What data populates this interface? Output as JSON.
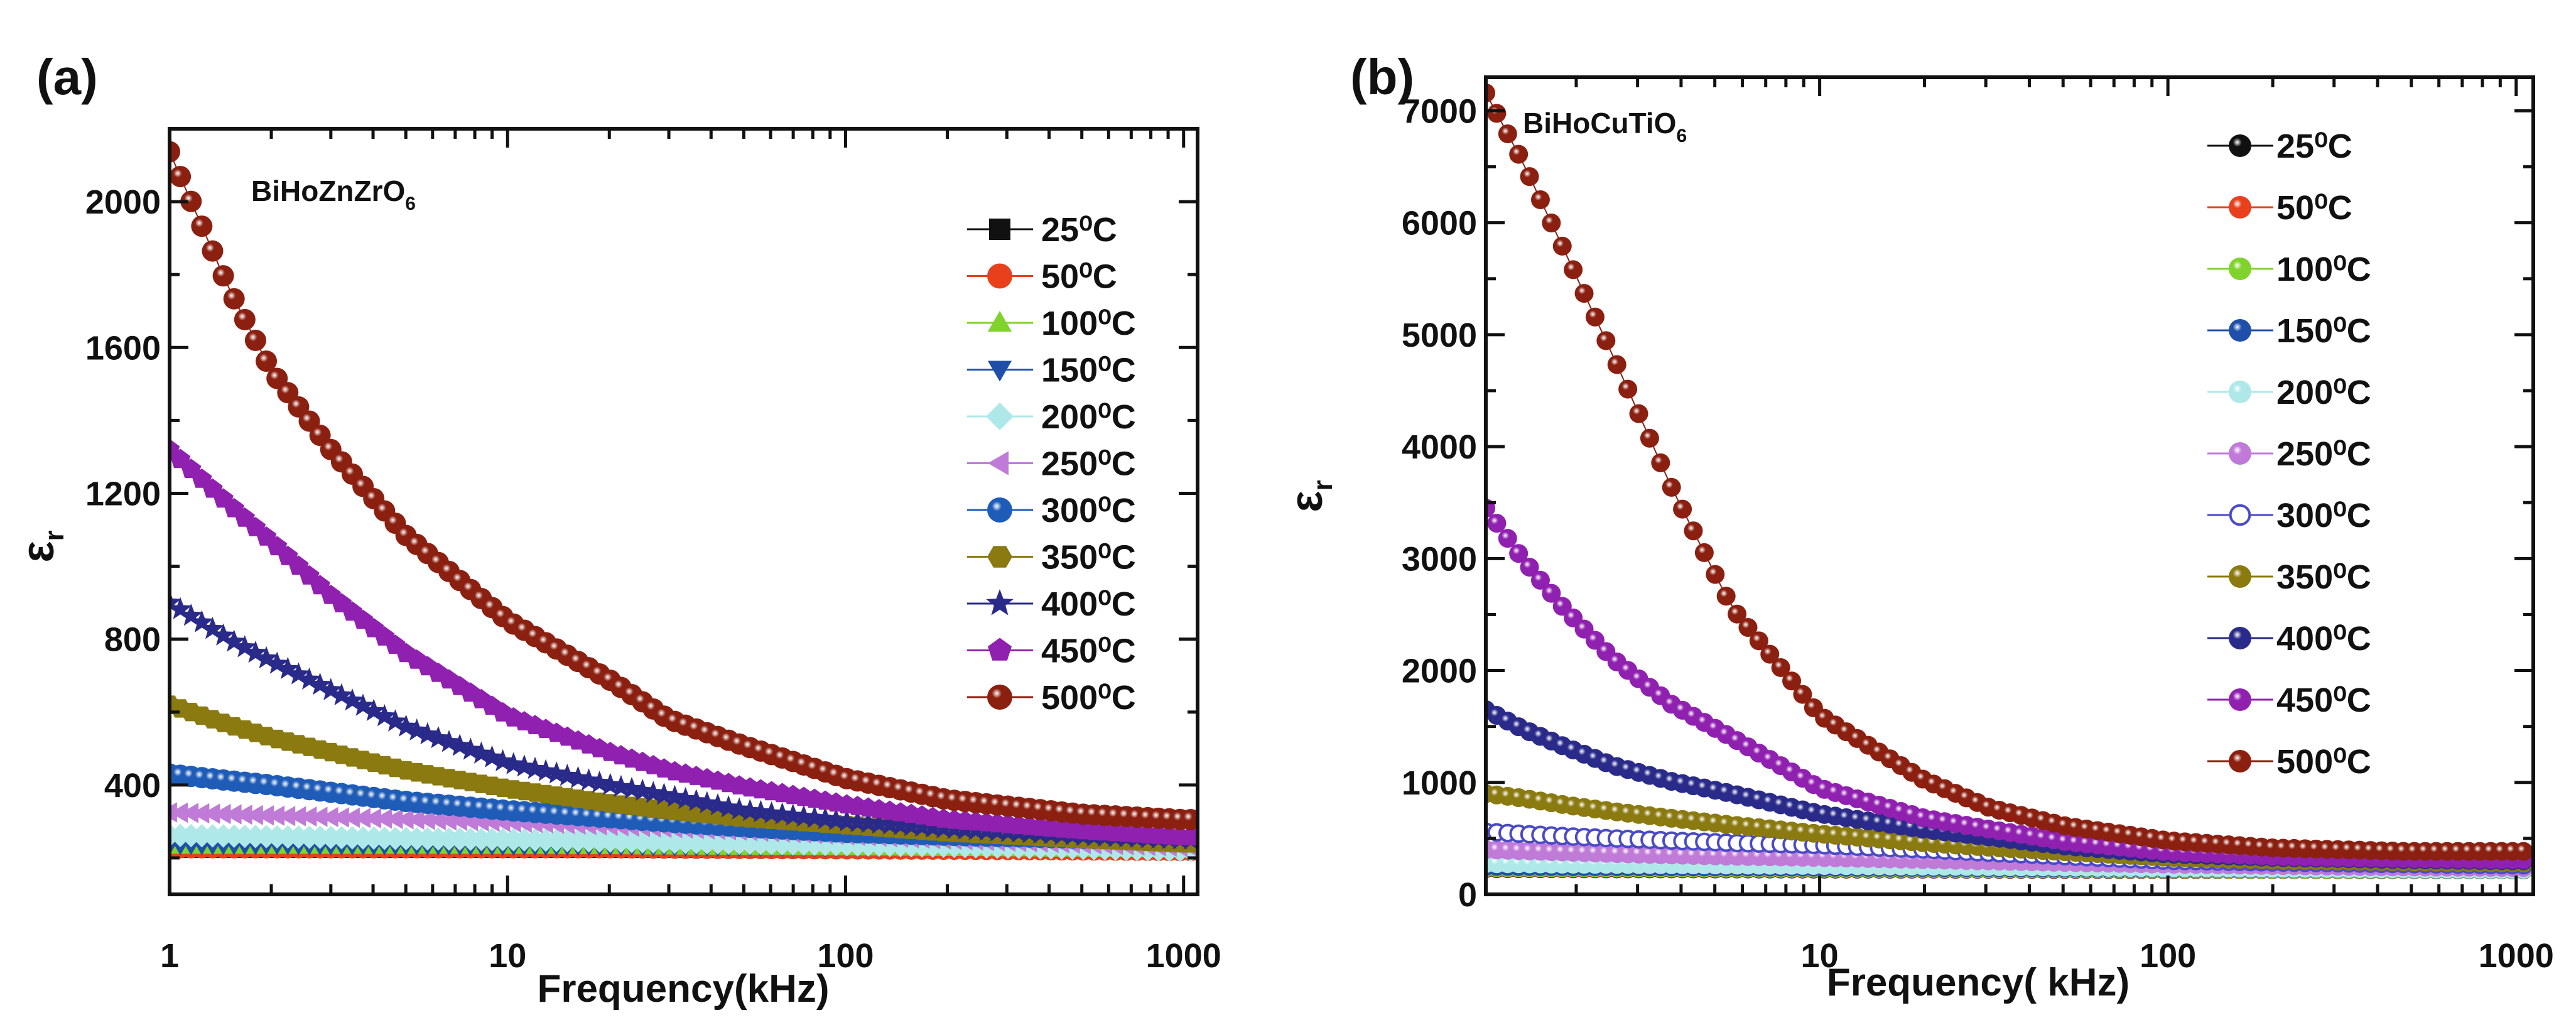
{
  "chart_data": [
    {
      "type": "scatter",
      "panel_label": "(a)",
      "compound": "BiHoZnZrO",
      "compound_sub": "6",
      "xlabel": "Frequency(kHz)",
      "ylabel": "ε",
      "ylabel_sub": "r",
      "xscale": "log",
      "xlim": [
        1,
        1100
      ],
      "ylim": [
        100,
        2200
      ],
      "xticks": [
        1,
        10,
        100,
        1000
      ],
      "xtick_labels": [
        "1",
        "10",
        "100",
        "1000"
      ],
      "yticks": [
        400,
        800,
        1200,
        1600,
        2000
      ],
      "ytick_labels": [
        "400",
        "800",
        "1200",
        "1600",
        "2000"
      ],
      "legend_position": "top-right",
      "x": [
        1,
        1.5,
        2,
        3,
        5,
        10,
        20,
        30,
        50,
        100,
        200,
        500,
        1000
      ],
      "series": [
        {
          "name": "25⁰C",
          "color": "#111111",
          "marker": "square",
          "y": [
            225,
            225,
            225,
            225,
            225,
            225,
            225,
            225,
            225,
            225,
            224,
            222,
            220
          ]
        },
        {
          "name": "50⁰C",
          "color": "#e8401c",
          "marker": "circle",
          "y": [
            228,
            228,
            228,
            228,
            228,
            228,
            228,
            227,
            226,
            225,
            224,
            222,
            220
          ]
        },
        {
          "name": "100⁰C",
          "color": "#7fd32a",
          "marker": "triangle-up",
          "y": [
            232,
            232,
            232,
            232,
            232,
            232,
            231,
            230,
            229,
            228,
            226,
            224,
            222
          ]
        },
        {
          "name": "150⁰C",
          "color": "#1f4fa8",
          "marker": "triangle-down",
          "y": [
            235,
            235,
            235,
            234,
            234,
            233,
            232,
            231,
            230,
            229,
            227,
            225,
            223
          ]
        },
        {
          "name": "200⁰C",
          "color": "#aee8e8",
          "marker": "diamond",
          "y": [
            262,
            260,
            258,
            256,
            253,
            250,
            246,
            243,
            240,
            236,
            232,
            226,
            220
          ]
        },
        {
          "name": "250⁰C",
          "color": "#c07ad8",
          "marker": "triangle-left",
          "y": [
            325,
            320,
            316,
            312,
            306,
            298,
            288,
            282,
            274,
            262,
            250,
            238,
            230
          ]
        },
        {
          "name": "300⁰C",
          "color": "#1e5cb8",
          "marker": "sphere",
          "y": [
            430,
            412,
            400,
            380,
            355,
            330,
            310,
            298,
            285,
            270,
            262,
            254,
            250
          ]
        },
        {
          "name": "350⁰C",
          "color": "#8a7a10",
          "marker": "hexagon",
          "y": [
            620,
            565,
            530,
            490,
            440,
            390,
            350,
            330,
            310,
            290,
            270,
            252,
            240
          ]
        },
        {
          "name": "400⁰C",
          "color": "#2a2a8a",
          "marker": "star",
          "y": [
            900,
            800,
            740,
            660,
            560,
            460,
            400,
            370,
            330,
            300,
            280,
            260,
            250
          ]
        },
        {
          "name": "450⁰C",
          "color": "#9020b0",
          "marker": "pentagon",
          "y": [
            1320,
            1170,
            1068,
            920,
            761,
            590,
            490,
            440,
            395,
            346,
            305,
            275,
            258
          ]
        },
        {
          "name": "500⁰C",
          "color": "#8b1f10",
          "marker": "sphere",
          "y": [
            2137,
            1760,
            1536,
            1320,
            1085,
            851,
            689,
            580,
            508,
            418,
            360,
            320,
            305
          ]
        }
      ]
    },
    {
      "type": "scatter",
      "panel_label": "(b)",
      "compound": "BiHoCuTiO",
      "compound_sub": "6",
      "xlabel": "Frequency( kHz)",
      "ylabel": "ε",
      "ylabel_sub": "r",
      "xscale": "log",
      "xlim": [
        1.1,
        1120
      ],
      "ylim": [
        0,
        7300
      ],
      "xticks": [
        10,
        100,
        1000
      ],
      "xtick_labels": [
        "10",
        "100",
        "1000"
      ],
      "yticks": [
        0,
        1000,
        2000,
        3000,
        4000,
        5000,
        6000,
        7000
      ],
      "ytick_labels": [
        "0",
        "1000",
        "2000",
        "3000",
        "4000",
        "5000",
        "6000",
        "7000"
      ],
      "legend_position": "top-right",
      "x": [
        1.1,
        1.4,
        1.85,
        2.56,
        3.75,
        5.6,
        10,
        20,
        31,
        51,
        100,
        200,
        480,
        1000
      ],
      "series": [
        {
          "name": "25⁰C",
          "color": "#111111",
          "marker": "sphere",
          "y": [
            230,
            230,
            229,
            228,
            228,
            227,
            226,
            225,
            224,
            223,
            222,
            221,
            220,
            219
          ]
        },
        {
          "name": "50⁰C",
          "color": "#e8401c",
          "marker": "sphere",
          "y": [
            235,
            234,
            233,
            232,
            232,
            231,
            230,
            228,
            227,
            226,
            225,
            223,
            221,
            220
          ]
        },
        {
          "name": "100⁰C",
          "color": "#7fd32a",
          "marker": "sphere",
          "y": [
            240,
            239,
            238,
            237,
            236,
            235,
            234,
            232,
            230,
            229,
            227,
            225,
            223,
            221
          ]
        },
        {
          "name": "150⁰C",
          "color": "#1f4fa8",
          "marker": "sphere",
          "y": [
            250,
            249,
            248,
            247,
            246,
            245,
            243,
            240,
            238,
            236,
            233,
            230,
            226,
            223
          ]
        },
        {
          "name": "200⁰C",
          "color": "#aee8e8",
          "marker": "sphere",
          "y": [
            275,
            273,
            270,
            268,
            265,
            262,
            258,
            252,
            248,
            244,
            238,
            233,
            228,
            224
          ]
        },
        {
          "name": "250⁰C",
          "color": "#c07ad8",
          "marker": "sphere",
          "y": [
            400,
            390,
            378,
            365,
            352,
            340,
            330,
            310,
            298,
            285,
            270,
            258,
            245,
            240
          ]
        },
        {
          "name": "300⁰C",
          "color": "#4a4ac8",
          "marker": "open-circle",
          "y": [
            560,
            540,
            520,
            500,
            480,
            460,
            440,
            400,
            370,
            340,
            300,
            285,
            270,
            260
          ]
        },
        {
          "name": "350⁰C",
          "color": "#8a7a10",
          "marker": "sphere",
          "y": [
            900,
            860,
            800,
            740,
            680,
            620,
            540,
            460,
            420,
            380,
            330,
            305,
            290,
            280
          ]
        },
        {
          "name": "400⁰C",
          "color": "#2a2a8a",
          "marker": "sphere",
          "y": [
            1650,
            1480,
            1320,
            1150,
            1010,
            900,
            720,
            580,
            510,
            430,
            360,
            330,
            310,
            300
          ]
        },
        {
          "name": "450⁰C",
          "color": "#9020b0",
          "marker": "sphere",
          "y": [
            3450,
            3000,
            2550,
            2100,
            1700,
            1400,
            950,
            680,
            580,
            470,
            380,
            340,
            320,
            310
          ]
        },
        {
          "name": "500⁰C",
          "color": "#8b1f10",
          "marker": "sphere",
          "y": [
            7160,
            6550,
            5750,
            4800,
            3640,
            2560,
            1600,
            1020,
            770,
            610,
            480,
            415,
            384,
            384
          ]
        }
      ]
    }
  ]
}
